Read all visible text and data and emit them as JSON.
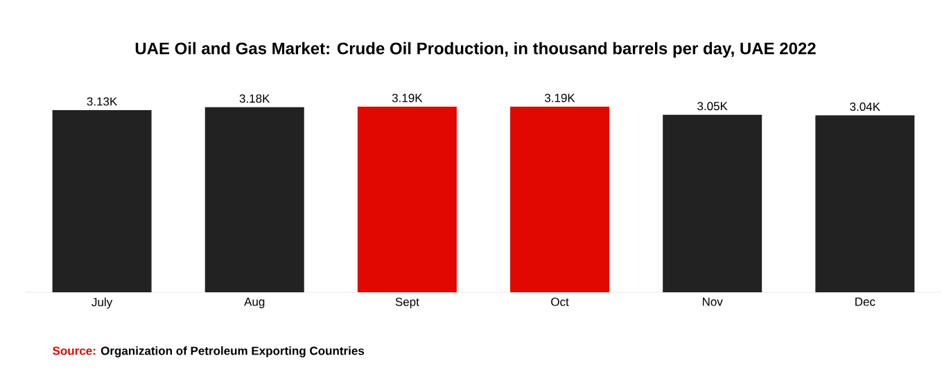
{
  "chart_data": {
    "type": "bar",
    "title": "UAE Oil and Gas Market: Crude Oil Production, in thousand barrels per day, UAE 2022",
    "categories": [
      "July",
      "Aug",
      "Sept",
      "Oct",
      "Nov",
      "Dec"
    ],
    "values": [
      3130,
      3180,
      3190,
      3190,
      3050,
      3040
    ],
    "value_labels": [
      "3.13K",
      "3.18K",
      "3.19K",
      "3.19K",
      "3.05K",
      "3.04K"
    ],
    "colors": [
      "#222222",
      "#222222",
      "#e00800",
      "#e00800",
      "#222222",
      "#222222"
    ],
    "annotations": [
      "Source:",
      "Organization of Petroleum Exporting Countries"
    ]
  }
}
